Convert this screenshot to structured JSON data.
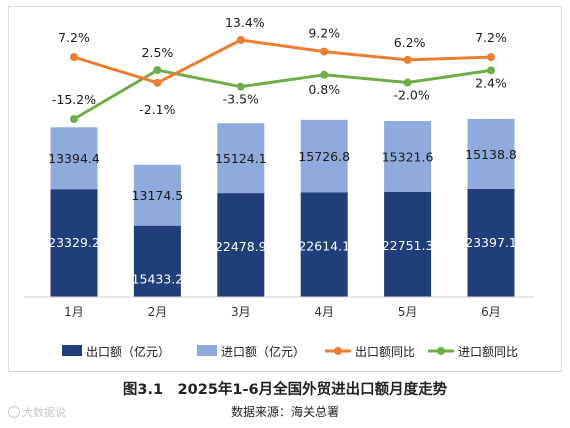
{
  "chart_data": {
    "type": "bar",
    "categories": [
      "1月",
      "2月",
      "3月",
      "4月",
      "5月",
      "6月"
    ],
    "series": [
      {
        "name": "出口额（亿元）",
        "kind": "stacked-bar",
        "color": "#1f3e7a",
        "values": [
          23329.2,
          15433.2,
          22478.9,
          22614.1,
          22751.3,
          23397.1
        ],
        "labels": [
          "23329.2",
          "15433.2",
          "22478.9",
          "22614.1",
          "22751.3",
          "23397.1"
        ]
      },
      {
        "name": "进口额（亿元）",
        "kind": "stacked-bar",
        "color": "#8faadc",
        "values": [
          13394.4,
          13174.5,
          15124.1,
          15726.8,
          15321.6,
          15138.8
        ],
        "labels": [
          "13394.4",
          "13174.5",
          "15124.1",
          "15726.8",
          "15321.6",
          "15138.8"
        ]
      },
      {
        "name": "出口额同比",
        "kind": "line",
        "color": "#ed7d31",
        "values": [
          7.2,
          -2.1,
          13.4,
          9.2,
          6.2,
          7.2
        ],
        "labels": [
          "7.2%",
          "-2.1%",
          "13.4%",
          "9.2%",
          "6.2%",
          "7.2%"
        ]
      },
      {
        "name": "进口额同比",
        "kind": "line",
        "color": "#70ad47",
        "values": [
          -15.2,
          2.5,
          -3.5,
          0.8,
          -2.0,
          2.4
        ],
        "labels": [
          "-15.2%",
          "2.5%",
          "-3.5%",
          "0.8%",
          "-2.0%",
          "2.4%"
        ]
      }
    ],
    "legend_position": "bottom",
    "grid": false
  },
  "caption": "图3.1　2025年1-6月全国外贸进出口额月度走势",
  "source": "数据来源：海关总署",
  "watermark": "大数据说"
}
